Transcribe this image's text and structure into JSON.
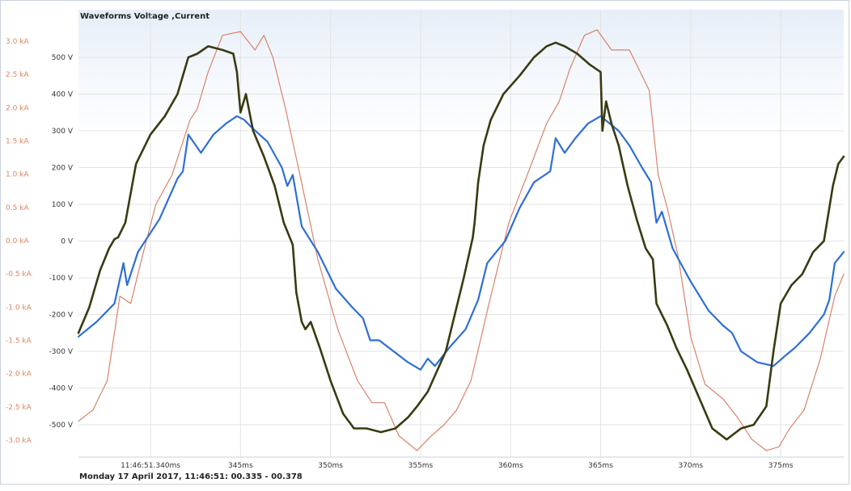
{
  "title": "Waveforms Voltage ,Current",
  "footer": "Monday 17 April 2017, 11:46:51: 00.335 - 00.378",
  "colors": {
    "voltage_dark": "#3a3a12",
    "voltage_pink": "#d9826b",
    "current_blue": "#2e6fd6",
    "grid": "#e3e3e3",
    "left_axis_text": "#d8865f"
  },
  "chart_data": {
    "type": "line",
    "title": "Waveforms Voltage ,Current",
    "xlim_ms": [
      336.0,
      378.5
    ],
    "voltage_axis": {
      "ticks": [
        "-500 V",
        "-400 V",
        "-300 V",
        "-200 V",
        "-100 V",
        "0 V",
        "100 V",
        "200 V",
        "300 V",
        "400 V",
        "500 V"
      ],
      "ylim": [
        -575,
        575
      ]
    },
    "current_axis": {
      "ticks": [
        "-3.0 kA",
        "-2.5 kA",
        "-2.0 kA",
        "-1.5 kA",
        "-1.0 kA",
        "-0.5 kA",
        "0.0 kA",
        "0.5 kA",
        "1.0 kA",
        "1.5 kA",
        "2.0 kA",
        "2.5 kA",
        "3.0 kA"
      ],
      "ylim": [
        -3.0,
        3.0
      ]
    },
    "x_ticks": [
      {
        "value": 340.0,
        "label": "11:46:51.340ms"
      },
      {
        "value": 345.0,
        "label": "345ms"
      },
      {
        "value": 350.0,
        "label": "350ms"
      },
      {
        "value": 355.0,
        "label": "355ms"
      },
      {
        "value": 360.0,
        "label": "360ms"
      },
      {
        "value": 365.0,
        "label": "365ms"
      },
      {
        "value": 370.0,
        "label": "370ms"
      },
      {
        "value": 375.0,
        "label": "375ms"
      }
    ],
    "grid": true,
    "series": [
      {
        "key": "pink",
        "axis": "voltage",
        "x": [
          336.0,
          336.8,
          337.6,
          338.3,
          338.9,
          339.5,
          340.3,
          341.2,
          342.2,
          342.6,
          343.2,
          344.0,
          345.0,
          345.8,
          346.3,
          346.8,
          347.5,
          348.3,
          349.3,
          350.4,
          351.5,
          352.3,
          353.0,
          353.8,
          354.8,
          355.6,
          356.3,
          357.0,
          357.8,
          358.8,
          359.9,
          361.0,
          362.0,
          362.7,
          363.3,
          364.1,
          364.8,
          365.6,
          366.6,
          367.7,
          368.2,
          368.7,
          369.3,
          370.0,
          370.8,
          371.8,
          372.6,
          373.4,
          374.2,
          374.9,
          375.5,
          376.3,
          377.2,
          378.0,
          378.5
        ],
        "y": [
          -490,
          -460,
          -380,
          -150,
          -170,
          -50,
          100,
          180,
          330,
          360,
          460,
          560,
          570,
          520,
          560,
          500,
          360,
          180,
          -50,
          -240,
          -380,
          -440,
          -440,
          -530,
          -570,
          -530,
          -500,
          -460,
          -380,
          -170,
          50,
          190,
          320,
          380,
          470,
          560,
          575,
          520,
          520,
          410,
          180,
          90,
          -40,
          -260,
          -390,
          -430,
          -480,
          -540,
          -570,
          -560,
          -510,
          -460,
          -320,
          -150,
          -90
        ]
      },
      {
        "key": "dark",
        "axis": "voltage",
        "x": [
          336.0,
          336.6,
          337.2,
          337.7,
          338.0,
          338.2,
          338.6,
          339.2,
          340.0,
          340.8,
          341.5,
          342.1,
          342.6,
          343.2,
          344.0,
          344.6,
          344.8,
          345.0,
          345.3,
          345.7,
          346.3,
          346.9,
          347.4,
          347.9,
          348.1,
          348.4,
          348.6,
          348.9,
          349.4,
          350.0,
          350.7,
          351.3,
          352.0,
          352.8,
          353.6,
          354.3,
          354.8,
          355.4,
          356.4,
          357.4,
          357.9,
          358.0,
          358.2,
          358.5,
          358.9,
          359.6,
          360.5,
          361.3,
          362.0,
          362.5,
          363.0,
          363.7,
          364.4,
          365.0,
          365.1,
          365.3,
          365.6,
          366.0,
          366.5,
          367.0,
          367.5,
          367.9,
          368.1,
          368.4,
          368.7,
          369.2,
          369.8,
          370.5,
          371.2,
          372.0,
          372.8,
          373.5,
          374.2,
          374.6,
          375.0,
          375.6,
          376.2,
          376.8,
          377.4,
          377.7,
          377.9,
          378.2,
          378.5
        ],
        "y": [
          -250,
          -180,
          -80,
          -20,
          5,
          10,
          50,
          210,
          290,
          340,
          400,
          500,
          510,
          530,
          520,
          510,
          460,
          350,
          400,
          300,
          230,
          150,
          50,
          -10,
          -140,
          -220,
          -240,
          -220,
          -290,
          -380,
          -470,
          -510,
          -510,
          -520,
          -510,
          -480,
          -450,
          -410,
          -300,
          -100,
          10,
          50,
          160,
          260,
          330,
          400,
          450,
          500,
          530,
          540,
          530,
          510,
          480,
          460,
          300,
          380,
          320,
          260,
          150,
          60,
          -20,
          -50,
          -170,
          -200,
          -230,
          -290,
          -350,
          -430,
          -510,
          -540,
          -510,
          -500,
          -450,
          -300,
          -170,
          -120,
          -90,
          -30,
          0,
          90,
          150,
          210,
          230
        ]
      },
      {
        "key": "blue",
        "axis": "voltage",
        "x": [
          336.0,
          337.0,
          338.0,
          338.5,
          338.7,
          339.3,
          340.5,
          341.5,
          341.8,
          342.1,
          342.8,
          343.5,
          344.2,
          344.8,
          345.2,
          345.6,
          346.5,
          347.3,
          347.6,
          347.9,
          348.4,
          349.3,
          350.3,
          351.2,
          351.8,
          352.2,
          352.7,
          353.5,
          354.3,
          355.0,
          355.4,
          355.8,
          356.6,
          357.5,
          358.2,
          358.7,
          359.2,
          359.7,
          360.5,
          361.3,
          362.2,
          362.5,
          363.0,
          363.6,
          364.3,
          365.0,
          365.5,
          366.0,
          366.6,
          367.3,
          367.8,
          368.1,
          368.4,
          369.0,
          370.0,
          371.0,
          371.8,
          372.3,
          372.8,
          373.7,
          374.6,
          375.3,
          375.8,
          376.6,
          377.4,
          377.7,
          378.0,
          378.5
        ],
        "y": [
          -260,
          -220,
          -170,
          -60,
          -120,
          -30,
          60,
          170,
          190,
          290,
          240,
          290,
          320,
          340,
          330,
          310,
          270,
          200,
          150,
          180,
          40,
          -30,
          -130,
          -180,
          -210,
          -270,
          -270,
          -300,
          -330,
          -350,
          -320,
          -340,
          -290,
          -240,
          -160,
          -60,
          -30,
          0,
          90,
          160,
          190,
          280,
          240,
          280,
          320,
          340,
          320,
          300,
          260,
          200,
          160,
          50,
          80,
          -20,
          -110,
          -190,
          -230,
          -250,
          -300,
          -330,
          -340,
          -310,
          -290,
          -250,
          -200,
          -160,
          -60,
          -30
        ]
      }
    ]
  }
}
